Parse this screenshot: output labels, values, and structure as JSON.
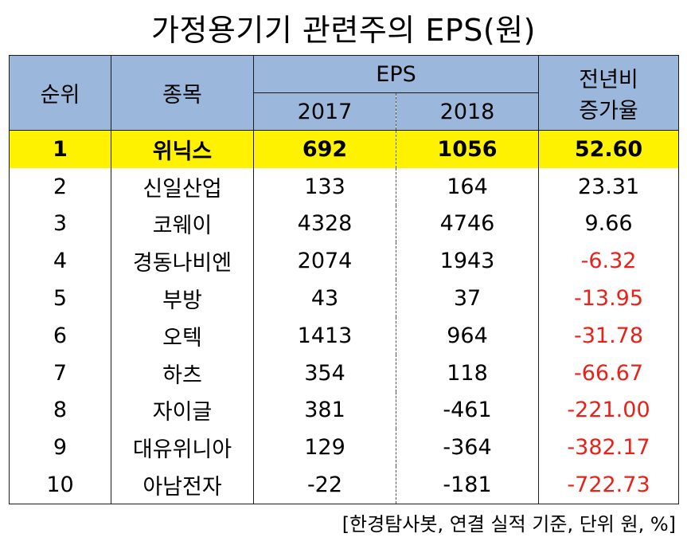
{
  "title": "가정용기기 관련주의 EPS(원)",
  "header": {
    "rank": "순위",
    "name": "종목",
    "eps": "EPS",
    "year1": "2017",
    "year2": "2018",
    "rate_line1": "전년비",
    "rate_line2": "증가율"
  },
  "rows": [
    {
      "rank": "1",
      "name": "위닉스",
      "y2017": "692",
      "y2018": "1056",
      "rate": "52.60",
      "highlight": true
    },
    {
      "rank": "2",
      "name": "신일산업",
      "y2017": "133",
      "y2018": "164",
      "rate": "23.31"
    },
    {
      "rank": "3",
      "name": "코웨이",
      "y2017": "4328",
      "y2018": "4746",
      "rate": "9.66"
    },
    {
      "rank": "4",
      "name": "경동나비엔",
      "y2017": "2074",
      "y2018": "1943",
      "rate": "-6.32"
    },
    {
      "rank": "5",
      "name": "부방",
      "y2017": "43",
      "y2018": "37",
      "rate": "-13.95"
    },
    {
      "rank": "6",
      "name": "오텍",
      "y2017": "1413",
      "y2018": "964",
      "rate": "-31.78"
    },
    {
      "rank": "7",
      "name": "하츠",
      "y2017": "354",
      "y2018": "118",
      "rate": "-66.67"
    },
    {
      "rank": "8",
      "name": "자이글",
      "y2017": "381",
      "y2018": "-461",
      "rate": "-221.00"
    },
    {
      "rank": "9",
      "name": "대유위니아",
      "y2017": "129",
      "y2018": "-364",
      "rate": "-382.17"
    },
    {
      "rank": "10",
      "name": "아남전자",
      "y2017": "-22",
      "y2018": "-181",
      "rate": "-722.73"
    }
  ],
  "colors": {
    "header_bg": "#9bb8dc",
    "highlight_bg": "#fff200",
    "negative_text": "#e8221a"
  },
  "footnote": "[한경탐사봇, 연결 실적 기준, 단위 원, %]"
}
